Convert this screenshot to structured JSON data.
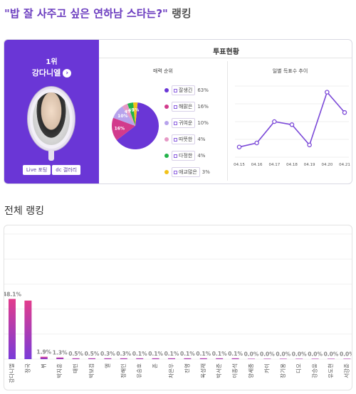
{
  "page": {
    "title_main": "\"밥 잘 사주고 싶은 연하남 스타는?\"",
    "title_suffix": " 랭킹"
  },
  "winner": {
    "rank": "1위",
    "name": "강다니엘",
    "arrow_icon": "chevron-right-icon",
    "buttons": {
      "live": "Live 포팅",
      "dc": "dc 갤러리"
    }
  },
  "vote_status": {
    "title": "투표현황",
    "charm_title": "매력 순위",
    "daily_title": "일별 득표수 추이",
    "charm_items": [
      {
        "label": "잘생긴",
        "pct": "63%",
        "value": 63,
        "color": "#6a36d6"
      },
      {
        "label": "해맑은",
        "pct": "16%",
        "value": 16,
        "color": "#d23a8c"
      },
      {
        "label": "귀여운",
        "pct": "10%",
        "value": 10,
        "color": "#b7a3ec"
      },
      {
        "label": "따뜻한",
        "pct": "4%",
        "value": 4,
        "color": "#e699c6"
      },
      {
        "label": "다정한",
        "pct": "4%",
        "value": 4,
        "color": "#22b34a"
      },
      {
        "label": "애교많은",
        "pct": "3%",
        "value": 3,
        "color": "#f2c21a"
      }
    ],
    "pie_labels": [
      "16%",
      "10%",
      "4%",
      "4%",
      "3%"
    ],
    "daily": {
      "dates": [
        "04.15",
        "04.16",
        "04.17",
        "04.18",
        "04.19",
        "04.20",
        "04.21"
      ],
      "values": [
        10,
        14,
        35,
        32,
        12,
        64,
        44
      ]
    }
  },
  "overall": {
    "title": "전체 랭킹",
    "bars": [
      {
        "name": "강다니엘",
        "value": 48.1,
        "label": "48.1%"
      },
      {
        "name": "정국",
        "value": 46.8,
        "label": ""
      },
      {
        "name": "뷔",
        "value": 1.9,
        "label": "1.9%"
      },
      {
        "name": "박지훈",
        "value": 1.3,
        "label": "1.3%"
      },
      {
        "name": "태민",
        "value": 0.5,
        "label": "0.5%"
      },
      {
        "name": "박보검",
        "value": 0.5,
        "label": "0.5%"
      },
      {
        "name": "엘",
        "value": 0.3,
        "label": "0.3%"
      },
      {
        "name": "정해인",
        "value": 0.3,
        "label": "0.3%"
      },
      {
        "name": "유승호",
        "value": 0.1,
        "label": "0.1%"
      },
      {
        "name": "존",
        "value": 0.1,
        "label": "0.1%"
      },
      {
        "name": "차은우",
        "value": 0.1,
        "label": "0.1%"
      },
      {
        "name": "진영",
        "value": 0.1,
        "label": "0.1%"
      },
      {
        "name": "육성재",
        "value": 0.1,
        "label": "0.1%"
      },
      {
        "name": "박서준",
        "value": 0.1,
        "label": "0.1%"
      },
      {
        "name": "이종석",
        "value": 0.1,
        "label": "0.1%"
      },
      {
        "name": "양세종",
        "value": 0.0,
        "label": "0.0%"
      },
      {
        "name": "카이",
        "value": 0.0,
        "label": "0.0%"
      },
      {
        "name": "장기용",
        "value": 0.0,
        "label": "0.0%"
      },
      {
        "name": "디오",
        "value": 0.0,
        "label": "0.0%"
      },
      {
        "name": "강승윤",
        "value": 0.0,
        "label": "0.0%"
      },
      {
        "name": "유도현",
        "value": 0.0,
        "label": "0.0%"
      },
      {
        "name": "서강준",
        "value": 0.0,
        "label": "0.0%"
      }
    ]
  },
  "chart_data": [
    {
      "type": "pie",
      "title": "매력 순위",
      "categories": [
        "잘생긴",
        "해맑은",
        "귀여운",
        "따뜻한",
        "다정한",
        "애교많은"
      ],
      "values": [
        63,
        16,
        10,
        4,
        4,
        3
      ]
    },
    {
      "type": "line",
      "title": "일별 득표수 추이",
      "x": [
        "04.15",
        "04.16",
        "04.17",
        "04.18",
        "04.19",
        "04.20",
        "04.21"
      ],
      "values": [
        10,
        14,
        35,
        32,
        12,
        64,
        44
      ],
      "grid": true
    },
    {
      "type": "bar",
      "title": "전체 랭킹",
      "categories": [
        "강다니엘",
        "정국",
        "뷔",
        "박지훈",
        "태민",
        "박보검",
        "엘",
        "정해인",
        "유승호",
        "존",
        "차은우",
        "진영",
        "육성재",
        "박서준",
        "이종석",
        "양세종",
        "카이",
        "장기용",
        "디오",
        "강승윤",
        "유도현",
        "서강준"
      ],
      "values": [
        48.1,
        46.8,
        1.9,
        1.3,
        0.5,
        0.5,
        0.3,
        0.3,
        0.1,
        0.1,
        0.1,
        0.1,
        0.1,
        0.1,
        0.1,
        0.0,
        0.0,
        0.0,
        0.0,
        0.0,
        0.0,
        0.0
      ],
      "ylim": [
        0,
        100
      ],
      "grid": true
    }
  ]
}
